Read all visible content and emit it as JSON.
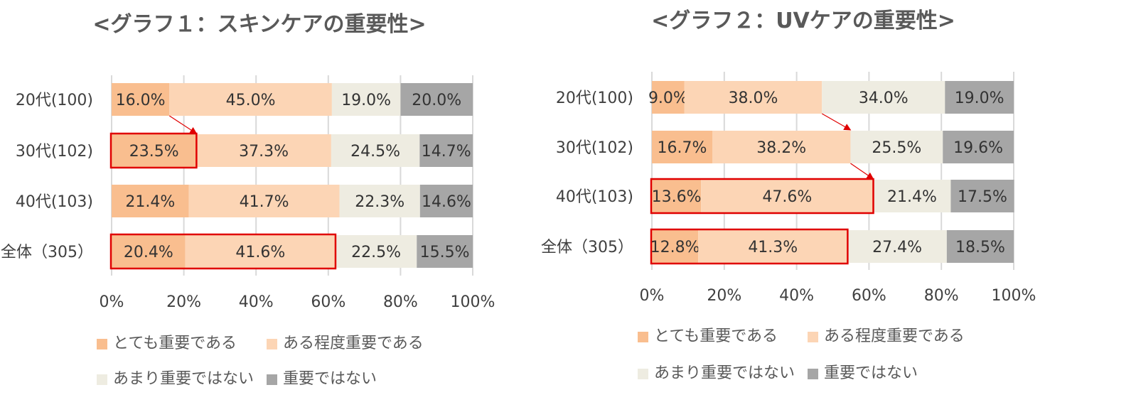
{
  "colors": {
    "very_important": "#F9BE8F",
    "somewhat_important": "#FCD5B5",
    "not_very_important": "#EEECE1",
    "not_important": "#A6A6A6",
    "grid": "#D9D9D9",
    "highlight": "#E00000"
  },
  "chart_data": [
    {
      "type": "bar",
      "orientation": "horizontal",
      "stacked": "percent",
      "title": "<グラフ１：スキンケアの重要性>",
      "categories": [
        "20代(100)",
        "30代(102)",
        "40代(103)",
        "全体（305）"
      ],
      "xlim": [
        0,
        100
      ],
      "x_ticks": [
        "0%",
        "20%",
        "40%",
        "60%",
        "80%",
        "100%"
      ],
      "grid": true,
      "legend": "bottom",
      "series": [
        {
          "name": "とても重要である",
          "values": [
            16.0,
            23.5,
            21.4,
            20.4
          ],
          "labels": [
            "16.0%",
            "23.5%",
            "21.4%",
            "20.4%"
          ]
        },
        {
          "name": "ある程度重要である",
          "values": [
            45.0,
            37.3,
            41.7,
            41.6
          ],
          "labels": [
            "45.0%",
            "37.3%",
            "41.7%",
            "41.6%"
          ]
        },
        {
          "name": "あまり重要ではない",
          "values": [
            19.0,
            24.5,
            22.3,
            22.5
          ],
          "labels": [
            "19.0%",
            "24.5%",
            "22.3%",
            "22.5%"
          ]
        },
        {
          "name": "重要ではない",
          "values": [
            20.0,
            14.7,
            14.6,
            15.5
          ],
          "labels": [
            "20.0%",
            "14.7%",
            "14.6%",
            "15.5%"
          ]
        }
      ],
      "highlights": [
        {
          "row": 1,
          "from": 0,
          "to": 23.5
        },
        {
          "row": 3,
          "from": 0,
          "to": 62.0
        }
      ],
      "arrows": [
        {
          "from_row": 0,
          "from_value": 16.0,
          "to_row": 1,
          "to_value": 23.5
        }
      ]
    },
    {
      "type": "bar",
      "orientation": "horizontal",
      "stacked": "percent",
      "title": "<グラフ２：UVケアの重要性>",
      "categories": [
        "20代(100)",
        "30代(102)",
        "40代(103)",
        "全体（305）"
      ],
      "xlim": [
        0,
        100
      ],
      "x_ticks": [
        "0%",
        "20%",
        "40%",
        "60%",
        "80%",
        "100%"
      ],
      "grid": true,
      "legend": "bottom",
      "series": [
        {
          "name": "とても重要である",
          "values": [
            9.0,
            16.7,
            13.6,
            12.8
          ],
          "labels": [
            "9.0%",
            "16.7%",
            "13.6%",
            "12.8%"
          ]
        },
        {
          "name": "ある程度重要である",
          "values": [
            38.0,
            38.2,
            47.6,
            41.3
          ],
          "labels": [
            "38.0%",
            "38.2%",
            "47.6%",
            "41.3%"
          ]
        },
        {
          "name": "あまり重要ではない",
          "values": [
            34.0,
            25.5,
            21.4,
            27.4
          ],
          "labels": [
            "34.0%",
            "25.5%",
            "21.4%",
            "27.4%"
          ]
        },
        {
          "name": "重要ではない",
          "values": [
            19.0,
            19.6,
            17.5,
            18.5
          ],
          "labels": [
            "19.0%",
            "19.6%",
            "17.5%",
            "18.5%"
          ]
        }
      ],
      "highlights": [
        {
          "row": 2,
          "from": 0,
          "to": 61.2
        },
        {
          "row": 3,
          "from": 0,
          "to": 54.1
        }
      ],
      "arrows": [
        {
          "from_row": 0,
          "from_value": 47.0,
          "to_row": 1,
          "to_value": 54.9
        },
        {
          "from_row": 1,
          "from_value": 54.9,
          "to_row": 2,
          "to_value": 61.2
        }
      ]
    }
  ]
}
